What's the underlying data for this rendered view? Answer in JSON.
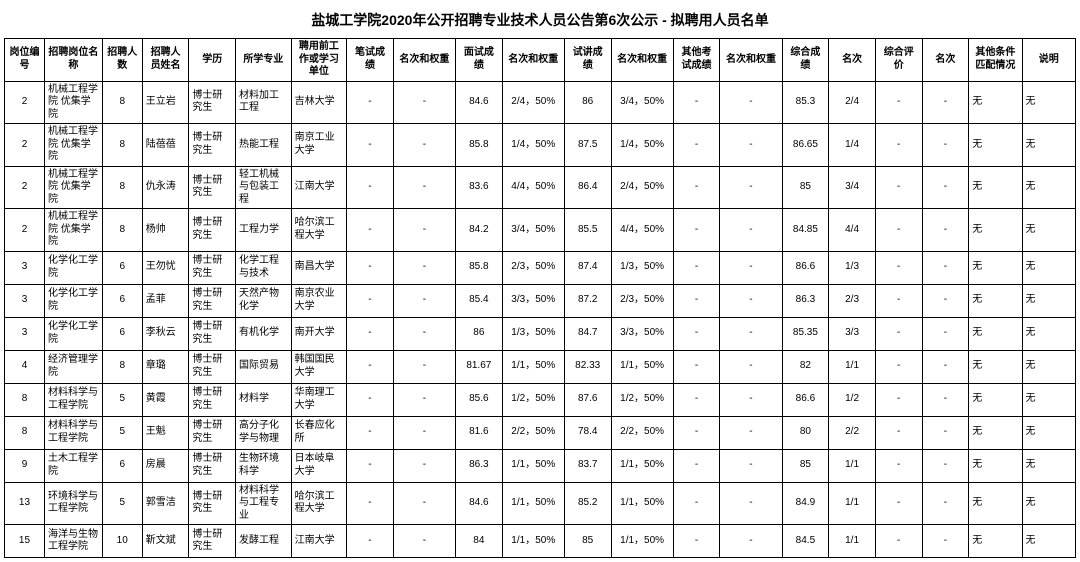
{
  "title": "盐城工学院2020年公开招聘专业技术人员公告第6次公示 - 拟聘用人员名单",
  "columns": [
    "岗位编号",
    "招聘岗位名称",
    "招聘人数",
    "招聘人员姓名",
    "学历",
    "所学专业",
    "聘用前工作或学习单位",
    "笔试成绩",
    "名次和权重",
    "面试成绩",
    "名次和权重",
    "试讲成绩",
    "名次和权重",
    "其他考试成绩",
    "名次和权重",
    "综合成绩",
    "名次",
    "综合评价",
    "名次",
    "其他条件匹配情况",
    "说明"
  ],
  "rows": [
    {
      "id": "2",
      "post": "机械工程学院 优集学院",
      "num": "8",
      "name": "王立岩",
      "edu": "博士研究生",
      "major": "材料加工工程",
      "unit": "吉林大学",
      "written": "-",
      "w_wt": "-",
      "interview": "84.6",
      "i_wt": "2/4，50%",
      "lecture": "86",
      "l_wt": "3/4，50%",
      "other": "-",
      "o_wt": "-",
      "total": "85.3",
      "rank": "2/4",
      "eval": "-",
      "erank": "-",
      "match": "无",
      "note": "无"
    },
    {
      "id": "2",
      "post": "机械工程学院 优集学院",
      "num": "8",
      "name": "陆蓓蓓",
      "edu": "博士研究生",
      "major": "热能工程",
      "unit": "南京工业大学",
      "written": "-",
      "w_wt": "-",
      "interview": "85.8",
      "i_wt": "1/4，50%",
      "lecture": "87.5",
      "l_wt": "1/4，50%",
      "other": "-",
      "o_wt": "-",
      "total": "86.65",
      "rank": "1/4",
      "eval": "-",
      "erank": "-",
      "match": "无",
      "note": "无"
    },
    {
      "id": "2",
      "post": "机械工程学院 优集学院",
      "num": "8",
      "name": "仇永涛",
      "edu": "博士研究生",
      "major": "轻工机械与包装工程",
      "unit": "江南大学",
      "written": "-",
      "w_wt": "-",
      "interview": "83.6",
      "i_wt": "4/4，50%",
      "lecture": "86.4",
      "l_wt": "2/4，50%",
      "other": "-",
      "o_wt": "-",
      "total": "85",
      "rank": "3/4",
      "eval": "-",
      "erank": "-",
      "match": "无",
      "note": "无"
    },
    {
      "id": "2",
      "post": "机械工程学院 优集学院",
      "num": "8",
      "name": "杨帅",
      "edu": "博士研究生",
      "major": "工程力学",
      "unit": "哈尔滨工程大学",
      "written": "-",
      "w_wt": "-",
      "interview": "84.2",
      "i_wt": "3/4，50%",
      "lecture": "85.5",
      "l_wt": "4/4，50%",
      "other": "-",
      "o_wt": "-",
      "total": "84.85",
      "rank": "4/4",
      "eval": "-",
      "erank": "-",
      "match": "无",
      "note": "无"
    },
    {
      "id": "3",
      "post": "化学化工学院",
      "num": "6",
      "name": "王勿忧",
      "edu": "博士研究生",
      "major": "化学工程与技术",
      "unit": "南昌大学",
      "written": "-",
      "w_wt": "-",
      "interview": "85.8",
      "i_wt": "2/3，50%",
      "lecture": "87.4",
      "l_wt": "1/3，50%",
      "other": "-",
      "o_wt": "-",
      "total": "86.6",
      "rank": "1/3",
      "eval": "-",
      "erank": "-",
      "match": "无",
      "note": "无"
    },
    {
      "id": "3",
      "post": "化学化工学院",
      "num": "6",
      "name": "孟菲",
      "edu": "博士研究生",
      "major": "天然产物化学",
      "unit": "南京农业大学",
      "written": "-",
      "w_wt": "-",
      "interview": "85.4",
      "i_wt": "3/3，50%",
      "lecture": "87.2",
      "l_wt": "2/3，50%",
      "other": "-",
      "o_wt": "-",
      "total": "86.3",
      "rank": "2/3",
      "eval": "-",
      "erank": "-",
      "match": "无",
      "note": "无"
    },
    {
      "id": "3",
      "post": "化学化工学院",
      "num": "6",
      "name": "李秋云",
      "edu": "博士研究生",
      "major": "有机化学",
      "unit": "南开大学",
      "written": "-",
      "w_wt": "-",
      "interview": "86",
      "i_wt": "1/3，50%",
      "lecture": "84.7",
      "l_wt": "3/3，50%",
      "other": "-",
      "o_wt": "-",
      "total": "85.35",
      "rank": "3/3",
      "eval": "-",
      "erank": "-",
      "match": "无",
      "note": "无"
    },
    {
      "id": "4",
      "post": "经济管理学院",
      "num": "8",
      "name": "章璐",
      "edu": "博士研究生",
      "major": "国际贸易",
      "unit": "韩国国民大学",
      "written": "-",
      "w_wt": "-",
      "interview": "81.67",
      "i_wt": "1/1，50%",
      "lecture": "82.33",
      "l_wt": "1/1，50%",
      "other": "-",
      "o_wt": "-",
      "total": "82",
      "rank": "1/1",
      "eval": "-",
      "erank": "-",
      "match": "无",
      "note": "无"
    },
    {
      "id": "8",
      "post": "材料科学与工程学院",
      "num": "5",
      "name": "黄霞",
      "edu": "博士研究生",
      "major": "材料学",
      "unit": "华南理工大学",
      "written": "-",
      "w_wt": "-",
      "interview": "85.6",
      "i_wt": "1/2，50%",
      "lecture": "87.6",
      "l_wt": "1/2，50%",
      "other": "-",
      "o_wt": "-",
      "total": "86.6",
      "rank": "1/2",
      "eval": "-",
      "erank": "-",
      "match": "无",
      "note": "无"
    },
    {
      "id": "8",
      "post": "材料科学与工程学院",
      "num": "5",
      "name": "王魁",
      "edu": "博士研究生",
      "major": "高分子化学与物理",
      "unit": "长春应化所",
      "written": "-",
      "w_wt": "-",
      "interview": "81.6",
      "i_wt": "2/2，50%",
      "lecture": "78.4",
      "l_wt": "2/2，50%",
      "other": "-",
      "o_wt": "-",
      "total": "80",
      "rank": "2/2",
      "eval": "-",
      "erank": "-",
      "match": "无",
      "note": "无"
    },
    {
      "id": "9",
      "post": "土木工程学院",
      "num": "6",
      "name": "房晨",
      "edu": "博士研究生",
      "major": "生物环境科学",
      "unit": "日本岐阜大学",
      "written": "-",
      "w_wt": "-",
      "interview": "86.3",
      "i_wt": "1/1，50%",
      "lecture": "83.7",
      "l_wt": "1/1，50%",
      "other": "-",
      "o_wt": "-",
      "total": "85",
      "rank": "1/1",
      "eval": "-",
      "erank": "-",
      "match": "无",
      "note": "无"
    },
    {
      "id": "13",
      "post": "环境科学与工程学院",
      "num": "5",
      "name": "郭雪洁",
      "edu": "博士研究生",
      "major": "材料科学与工程专业",
      "unit": "哈尔滨工程大学",
      "written": "-",
      "w_wt": "-",
      "interview": "84.6",
      "i_wt": "1/1，50%",
      "lecture": "85.2",
      "l_wt": "1/1，50%",
      "other": "-",
      "o_wt": "-",
      "total": "84.9",
      "rank": "1/1",
      "eval": "-",
      "erank": "-",
      "match": "无",
      "note": "无"
    },
    {
      "id": "15",
      "post": "海洋与生物工程学院",
      "num": "10",
      "name": "靳文斌",
      "edu": "博士研究生",
      "major": "发酵工程",
      "unit": "江南大学",
      "written": "-",
      "w_wt": "-",
      "interview": "84",
      "i_wt": "1/1，50%",
      "lecture": "85",
      "l_wt": "1/1，50%",
      "other": "-",
      "o_wt": "-",
      "total": "84.5",
      "rank": "1/1",
      "eval": "-",
      "erank": "-",
      "match": "无",
      "note": "无"
    }
  ],
  "style": {
    "border_color": "#000000",
    "bg_color": "#ffffff",
    "title_fontsize": 14,
    "cell_fontsize": 10,
    "centered_cols": [
      0,
      2,
      7,
      8,
      9,
      10,
      11,
      12,
      13,
      14,
      15,
      16,
      17,
      18
    ],
    "col_keys": [
      "id",
      "post",
      "num",
      "name",
      "edu",
      "major",
      "unit",
      "written",
      "w_wt",
      "interview",
      "i_wt",
      "lecture",
      "l_wt",
      "other",
      "o_wt",
      "total",
      "rank",
      "eval",
      "erank",
      "match",
      "note"
    ]
  }
}
